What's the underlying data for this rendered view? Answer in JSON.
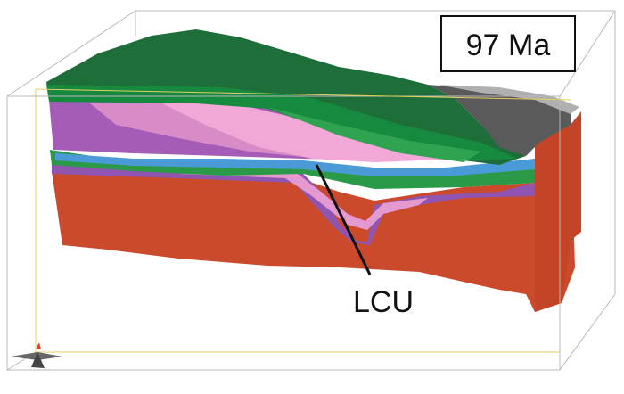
{
  "label": "97 Ma",
  "annotation": "LCU"
}
